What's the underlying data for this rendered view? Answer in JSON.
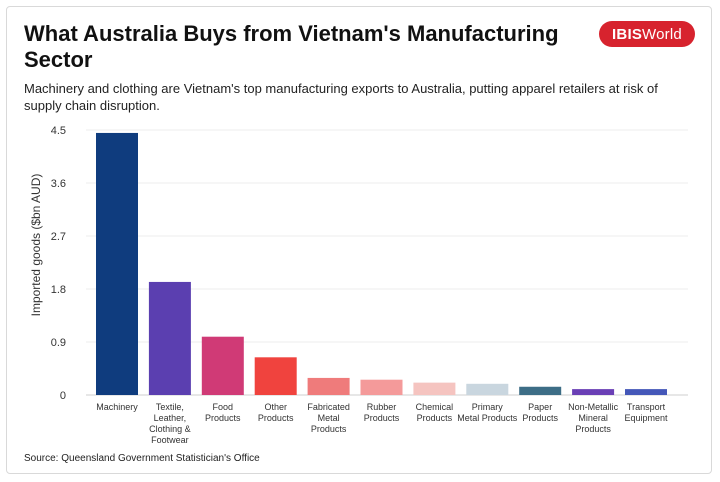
{
  "header": {
    "title": "What Australia Buys from Vietnam's Manufacturing Sector",
    "subtitle": "Machinery and clothing are Vietnam's top manufacturing exports to Australia, putting apparel retailers at risk of supply chain disruption.",
    "logo_bold": "IBIS",
    "logo_rest": "World",
    "logo_color": "#d7232e"
  },
  "footer": {
    "source": "Source: Queensland Government Statistician's Office"
  },
  "chart_data": {
    "type": "bar",
    "title": "What Australia Buys from Vietnam's Manufacturing Sector",
    "subtitle": "Machinery and clothing are Vietnam's top manufacturing exports to Australia, putting apparel retailers at risk of supply chain disruption.",
    "xlabel": "",
    "ylabel": "Imported goods ($bn AUD)",
    "ylim": [
      0,
      4.5
    ],
    "yticks": [
      "0",
      "0.9",
      "1.8",
      "2.7",
      "3.6",
      "4.5"
    ],
    "ytick_values": [
      0,
      0.9,
      1.8,
      2.7,
      3.6,
      4.5
    ],
    "grid": true,
    "categories": [
      [
        "Machinery"
      ],
      [
        "Textile,",
        "Leather,",
        "Clothing &",
        "Footwear"
      ],
      [
        "Food",
        "Products"
      ],
      [
        "Other",
        "Products"
      ],
      [
        "Fabricated",
        "Metal",
        "Products"
      ],
      [
        "Rubber",
        "Products"
      ],
      [
        "Chemical",
        "Products"
      ],
      [
        "Primary",
        "Metal Products"
      ],
      [
        "Paper",
        "Products"
      ],
      [
        "Non-Metallic",
        "Mineral",
        "Products"
      ],
      [
        "Transport",
        "Equipment"
      ]
    ],
    "values": [
      4.45,
      1.92,
      0.99,
      0.64,
      0.29,
      0.26,
      0.21,
      0.19,
      0.14,
      0.1,
      0.1
    ],
    "colors": [
      "#0f3c7e",
      "#5b3fb0",
      "#d03a76",
      "#f0433e",
      "#ef7b7b",
      "#f49a9a",
      "#f5c4c0",
      "#c9d6df",
      "#3d6d86",
      "#6a3fb5",
      "#4457b8"
    ]
  }
}
